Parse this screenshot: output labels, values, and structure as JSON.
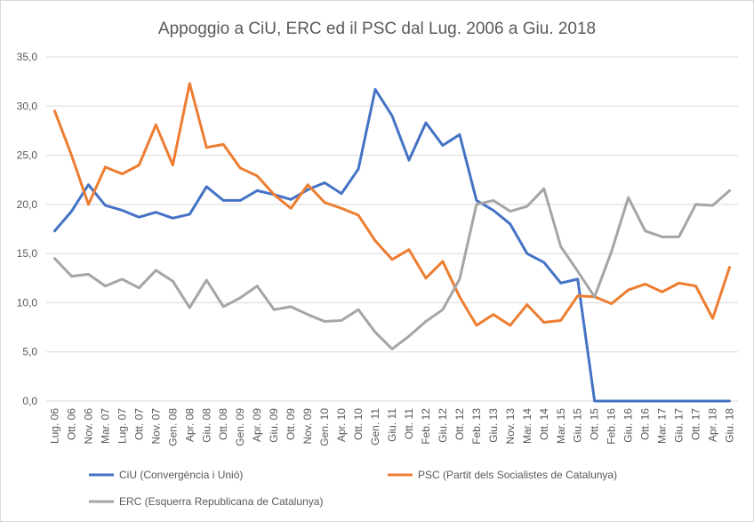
{
  "chart_data": {
    "type": "line",
    "title": "Appoggio a CiU, ERC ed il PSC dal Lug. 2006 a Giu. 2018",
    "categories": [
      "Lug. 06",
      "Ott. 06",
      "Nov. 06",
      "Mar. 07",
      "Lug. 07",
      "Ott. 07",
      "Nov. 07",
      "Gen. 08",
      "Apr. 08",
      "Giu. 08",
      "Ott. 08",
      "Gen. 09",
      "Apr. 09",
      "Giu. 09",
      "Ott. 09",
      "Nov. 09",
      "Gen. 10",
      "Apr. 10",
      "Ott. 10",
      "Gen. 11",
      "Giu. 11",
      "Ott. 11",
      "Feb. 12",
      "Giu. 12",
      "Ott. 12",
      "Feb. 13",
      "Giu. 13",
      "Nov. 13",
      "Mar. 14",
      "Ott. 14",
      "Mar. 15",
      "Giu. 15",
      "Ott. 15",
      "Feb. 16",
      "Giu. 16",
      "Ott. 16",
      "Mar. 17",
      "Giu. 17",
      "Ott. 17",
      "Apr. 18",
      "Giu. 18"
    ],
    "series": [
      {
        "name": "CiU (Convergència i Unió)",
        "color": "#4472c4",
        "values": [
          17.3,
          19.3,
          22.0,
          19.9,
          19.4,
          18.7,
          19.2,
          18.6,
          19.0,
          21.8,
          20.4,
          20.4,
          21.4,
          21.0,
          20.5,
          21.5,
          22.2,
          21.1,
          23.6,
          31.7,
          29.0,
          24.5,
          28.3,
          26.0,
          27.1,
          20.4,
          19.4,
          18.0,
          15.0,
          14.1,
          12.0,
          12.4,
          0,
          0,
          0,
          0,
          0,
          0,
          0,
          0,
          0
        ]
      },
      {
        "name": "PSC (Partit dels Socialistes de Catalunya)",
        "color": "#ed7d31",
        "values": [
          29.5,
          25.0,
          20.0,
          23.8,
          23.1,
          24.0,
          28.1,
          24.0,
          32.3,
          25.8,
          26.1,
          23.7,
          22.9,
          21.0,
          19.6,
          22.0,
          20.2,
          19.6,
          18.9,
          16.3,
          14.4,
          15.4,
          12.5,
          14.2,
          10.6,
          7.7,
          8.8,
          7.7,
          9.8,
          8.0,
          8.2,
          10.7,
          10.6,
          9.9,
          11.3,
          11.9,
          11.1,
          12.0,
          11.7,
          8.4,
          13.6
        ]
      },
      {
        "name": "ERC (Esquerra Republicana de Catalunya)",
        "color": "#a5a5a5",
        "values": [
          14.5,
          12.7,
          12.9,
          11.7,
          12.4,
          11.5,
          13.3,
          12.2,
          9.5,
          12.3,
          9.6,
          10.5,
          11.7,
          9.3,
          9.6,
          8.8,
          8.1,
          8.2,
          9.3,
          7.0,
          5.3,
          6.6,
          8.1,
          9.3,
          12.4,
          20.0,
          20.4,
          19.3,
          19.8,
          21.6,
          15.7,
          13.2,
          10.6,
          15.2,
          20.7,
          17.3,
          16.7,
          16.7,
          20.0,
          19.9,
          21.4
        ]
      }
    ],
    "ylim": [
      0,
      35
    ],
    "yticks": [
      {
        "value": 0,
        "label": "0,0"
      },
      {
        "value": 5,
        "label": "5,0"
      },
      {
        "value": 10,
        "label": "10,0"
      },
      {
        "value": 15,
        "label": "15,0"
      },
      {
        "value": 20,
        "label": "20,0"
      },
      {
        "value": 25,
        "label": "25,0"
      },
      {
        "value": 30,
        "label": "30,0"
      },
      {
        "value": 35,
        "label": "35,0"
      }
    ],
    "grid": true,
    "legend": "bottom"
  }
}
